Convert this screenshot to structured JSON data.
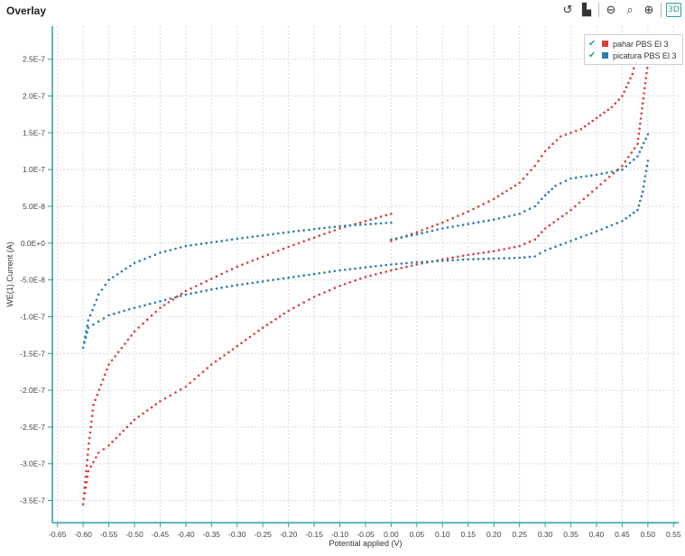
{
  "window": {
    "title": "Overlay"
  },
  "toolbar": {
    "three_d_label": "3D"
  },
  "chart_data": {
    "type": "scatter",
    "xlabel": "Potential applied (V)",
    "ylabel": "WE(1).Current (A)",
    "xlim": [
      -0.66,
      0.56
    ],
    "ylim": [
      -3.8e-07,
      2.95e-07
    ],
    "x_ticks": [
      "-0.65",
      "-0.60",
      "-0.55",
      "-0.50",
      "-0.45",
      "-0.40",
      "-0.35",
      "-0.30",
      "-0.25",
      "-0.20",
      "-0.15",
      "-0.10",
      "-0.05",
      "0.00",
      "0.05",
      "0.10",
      "0.15",
      "0.20",
      "0.25",
      "0.30",
      "0.35",
      "0.40",
      "0.45",
      "0.50",
      "0.55"
    ],
    "y_ticks": [
      "2.5E-7",
      "2.0E-7",
      "1.5E-7",
      "1.0E-7",
      "5.0E-8",
      "0.0E+0",
      "-5.0E-8",
      "-1.0E-7",
      "-1.5E-7",
      "-2.0E-7",
      "-2.5E-7",
      "-3.0E-7",
      "-3.5E-7"
    ],
    "grid": true,
    "legend_position": "top-right",
    "series": [
      {
        "name": "pahar PBS El 3",
        "color": "#d9403b",
        "segments": [
          [
            [
              0.0,
              4e-08
            ],
            [
              -0.1,
              2e-08
            ],
            [
              -0.2,
              -5e-09
            ],
            [
              -0.3,
              -3.2e-08
            ],
            [
              -0.4,
              -6.5e-08
            ],
            [
              -0.45,
              -8.8e-08
            ],
            [
              -0.5,
              -1.2e-07
            ],
            [
              -0.55,
              -1.65e-07
            ],
            [
              -0.58,
              -2.2e-07
            ],
            [
              -0.59,
              -2.8e-07
            ],
            [
              -0.6,
              -3.55e-07
            ],
            [
              -0.59,
              -3.1e-07
            ],
            [
              -0.57,
              -2.85e-07
            ],
            [
              -0.55,
              -2.75e-07
            ],
            [
              -0.5,
              -2.4e-07
            ],
            [
              -0.45,
              -2.15e-07
            ],
            [
              -0.4,
              -1.95e-07
            ],
            [
              -0.35,
              -1.65e-07
            ],
            [
              -0.3,
              -1.4e-07
            ],
            [
              -0.25,
              -1.15e-07
            ],
            [
              -0.2,
              -9.2e-08
            ],
            [
              -0.15,
              -7.3e-08
            ],
            [
              -0.1,
              -5.8e-08
            ],
            [
              -0.05,
              -4.6e-08
            ],
            [
              0.0,
              -3.7e-08
            ],
            [
              0.05,
              -2.9e-08
            ],
            [
              0.1,
              -2.2e-08
            ],
            [
              0.15,
              -1.6e-08
            ],
            [
              0.2,
              -1.1e-08
            ],
            [
              0.25,
              -4e-09
            ],
            [
              0.28,
              5e-09
            ],
            [
              0.3,
              2e-08
            ],
            [
              0.35,
              4.5e-08
            ],
            [
              0.4,
              7.5e-08
            ],
            [
              0.45,
              1.05e-07
            ],
            [
              0.48,
              1.35e-07
            ],
            [
              0.49,
              1.9e-07
            ],
            [
              0.5,
              2.45e-07
            ]
          ],
          [
            [
              0.0,
              3e-09
            ],
            [
              0.05,
              1.5e-08
            ],
            [
              0.1,
              2.8e-08
            ],
            [
              0.15,
              4.3e-08
            ],
            [
              0.2,
              6e-08
            ],
            [
              0.25,
              8.2e-08
            ],
            [
              0.28,
              1.05e-07
            ],
            [
              0.3,
              1.25e-07
            ],
            [
              0.33,
              1.45e-07
            ],
            [
              0.37,
              1.55e-07
            ],
            [
              0.4,
              1.7e-07
            ],
            [
              0.43,
              1.85e-07
            ],
            [
              0.45,
              2e-07
            ],
            [
              0.47,
              2.3e-07
            ],
            [
              0.48,
              2.6e-07
            ]
          ]
        ]
      },
      {
        "name": "picatura PBS El 3",
        "color": "#2a7db3",
        "segments": [
          [
            [
              0.0,
              2.8e-08
            ],
            [
              -0.1,
              2.3e-08
            ],
            [
              -0.2,
              1.5e-08
            ],
            [
              -0.3,
              6e-09
            ],
            [
              -0.4,
              -4e-09
            ],
            [
              -0.45,
              -1.3e-08
            ],
            [
              -0.5,
              -2.7e-08
            ],
            [
              -0.55,
              -5e-08
            ],
            [
              -0.57,
              -7e-08
            ],
            [
              -0.59,
              -1.05e-07
            ],
            [
              -0.6,
              -1.42e-07
            ],
            [
              -0.59,
              -1.15e-07
            ],
            [
              -0.55,
              -9.8e-08
            ],
            [
              -0.5,
              -8.8e-08
            ],
            [
              -0.45,
              -7.9e-08
            ],
            [
              -0.4,
              -7e-08
            ],
            [
              -0.35,
              -6.3e-08
            ],
            [
              -0.3,
              -5.7e-08
            ],
            [
              -0.25,
              -5.2e-08
            ],
            [
              -0.2,
              -4.7e-08
            ],
            [
              -0.15,
              -4.2e-08
            ],
            [
              -0.1,
              -3.7e-08
            ],
            [
              -0.05,
              -3.3e-08
            ],
            [
              0.0,
              -2.9e-08
            ],
            [
              0.05,
              -2.6e-08
            ],
            [
              0.1,
              -2.4e-08
            ],
            [
              0.15,
              -2.2e-08
            ],
            [
              0.2,
              -2.1e-08
            ],
            [
              0.25,
              -2e-08
            ],
            [
              0.28,
              -1.8e-08
            ],
            [
              0.3,
              -1e-08
            ],
            [
              0.35,
              3e-09
            ],
            [
              0.4,
              1.6e-08
            ],
            [
              0.45,
              3e-08
            ],
            [
              0.48,
              4.5e-08
            ],
            [
              0.49,
              7e-08
            ],
            [
              0.5,
              1.12e-07
            ]
          ],
          [
            [
              0.0,
              5e-09
            ],
            [
              0.05,
              1.2e-08
            ],
            [
              0.1,
              2e-08
            ],
            [
              0.15,
              2.6e-08
            ],
            [
              0.2,
              3.2e-08
            ],
            [
              0.25,
              4e-08
            ],
            [
              0.28,
              5e-08
            ],
            [
              0.3,
              6.5e-08
            ],
            [
              0.32,
              7.8e-08
            ],
            [
              0.35,
              8.8e-08
            ],
            [
              0.4,
              9.3e-08
            ],
            [
              0.45,
              1e-07
            ],
            [
              0.48,
              1.18e-07
            ],
            [
              0.5,
              1.48e-07
            ]
          ]
        ]
      }
    ]
  }
}
